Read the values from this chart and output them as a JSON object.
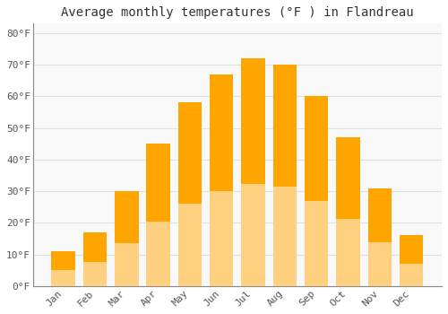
{
  "title": "Average monthly temperatures (°F ) in Flandreau",
  "months": [
    "Jan",
    "Feb",
    "Mar",
    "Apr",
    "May",
    "Jun",
    "Jul",
    "Aug",
    "Sep",
    "Oct",
    "Nov",
    "Dec"
  ],
  "values": [
    11,
    17,
    30,
    45,
    58,
    67,
    72,
    70,
    60,
    47,
    31,
    16
  ],
  "bar_color": "#FFA500",
  "bar_color_light": "#FFD080",
  "ylim": [
    0,
    83
  ],
  "yticks": [
    0,
    10,
    20,
    30,
    40,
    50,
    60,
    70,
    80
  ],
  "ytick_labels": [
    "0°F",
    "10°F",
    "20°F",
    "30°F",
    "40°F",
    "50°F",
    "60°F",
    "70°F",
    "80°F"
  ],
  "background_color": "#ffffff",
  "plot_bg_color": "#f9f9f9",
  "grid_color": "#e0e0e0",
  "bar_edge_color": "none",
  "title_fontsize": 10,
  "tick_fontsize": 8,
  "tick_color": "#555555",
  "title_color": "#333333",
  "spine_color": "#888888"
}
